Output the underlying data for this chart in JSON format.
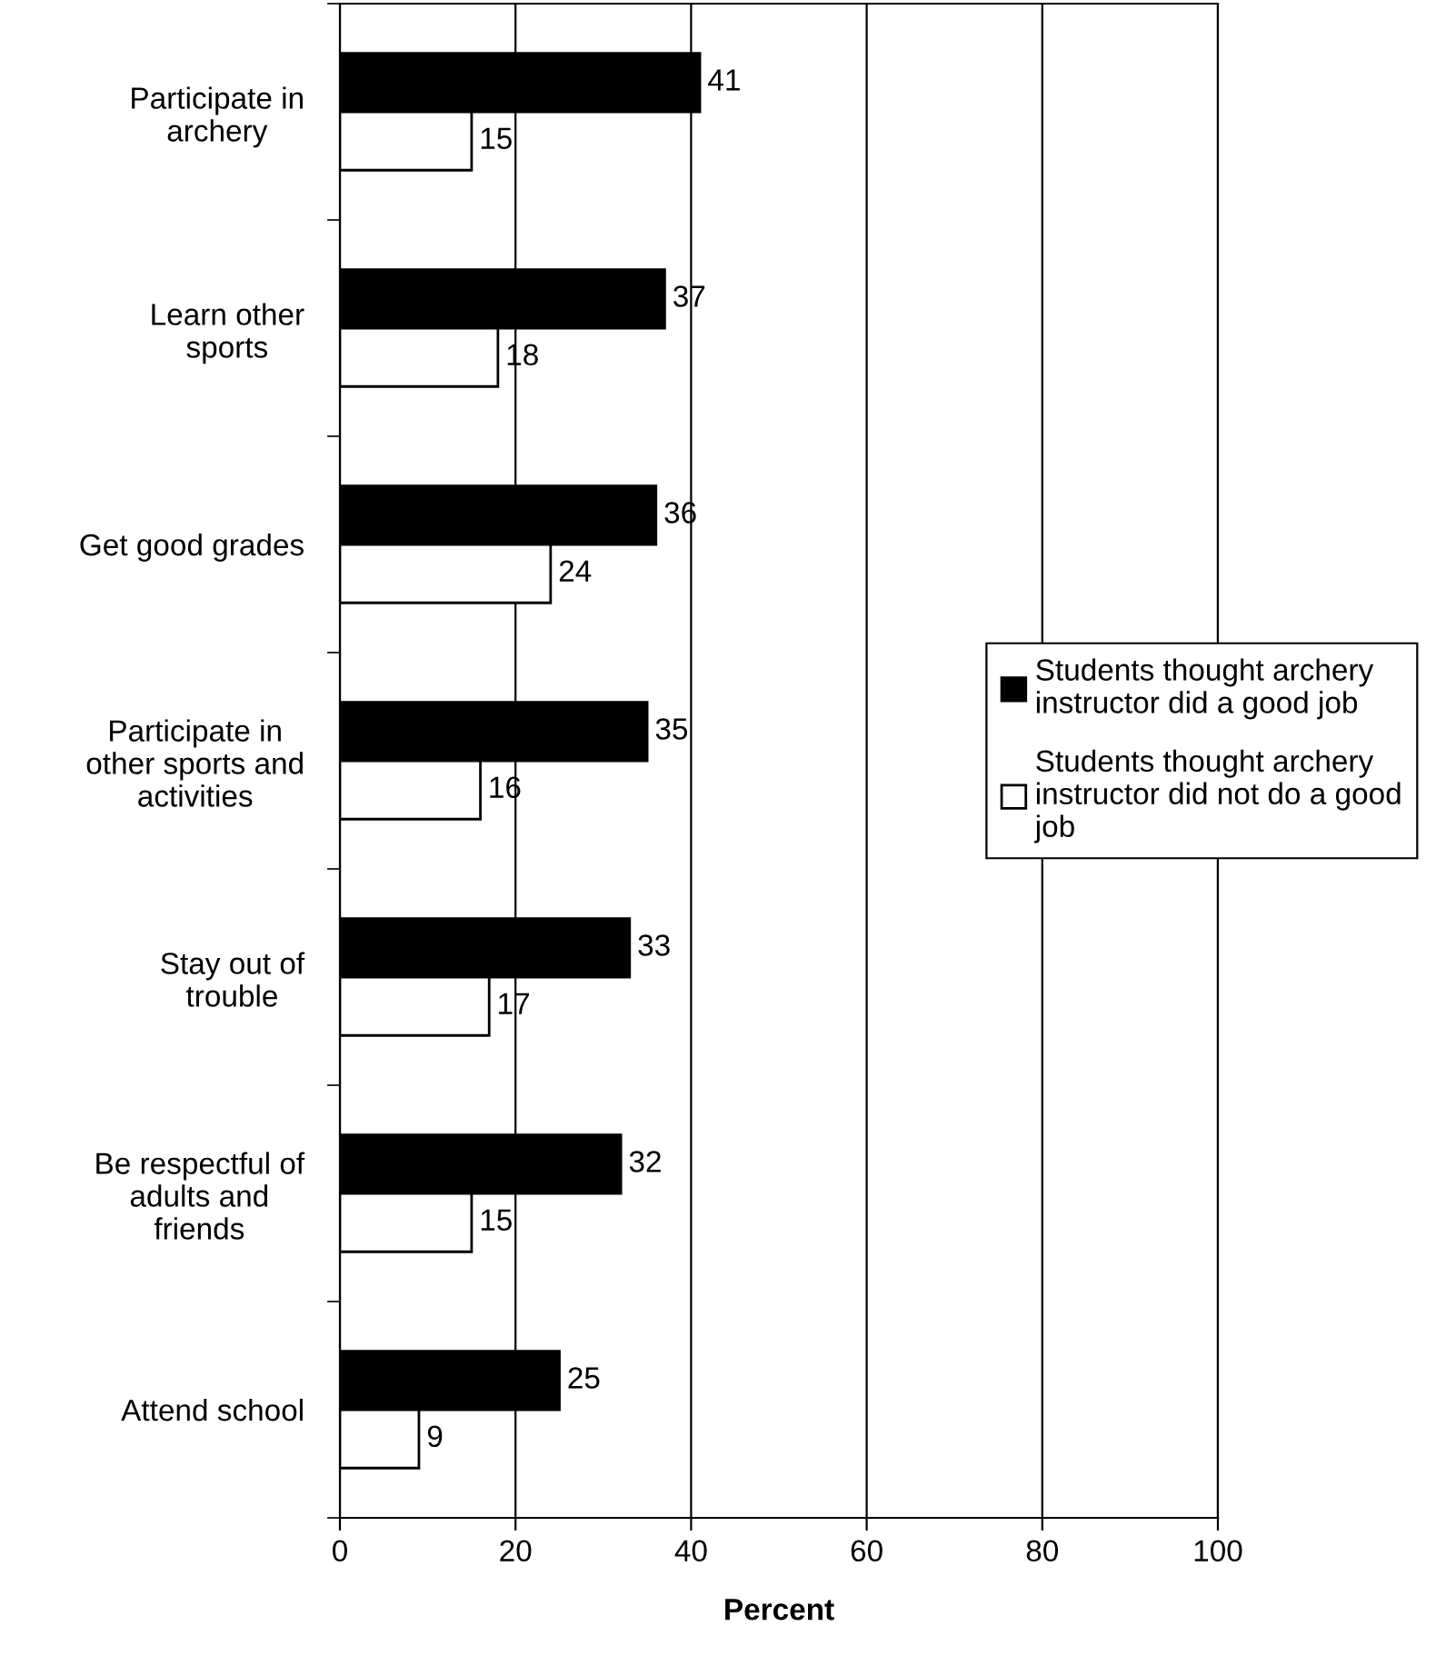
{
  "chart_data": {
    "type": "bar",
    "orientation": "horizontal",
    "xlabel": "Percent",
    "categories": [
      "Participate in\narchery",
      "Learn other\nsports",
      "Get good grades",
      "Participate in\nother sports and\nactivities",
      "Stay out of\ntrouble",
      "Be respectful of\nadults and\nfriends",
      "Attend school"
    ],
    "series": [
      {
        "name": "Students thought archery\ninstructor did a good job",
        "color": "#000000",
        "values": [
          41,
          37,
          36,
          35,
          33,
          32,
          25
        ]
      },
      {
        "name": "Students thought archery\ninstructor did not do a good\njob",
        "color": "#ffffff",
        "values": [
          15,
          18,
          24,
          16,
          17,
          15,
          9
        ]
      }
    ],
    "xlim": [
      0,
      100
    ],
    "xticks": [
      0,
      20,
      40,
      60,
      80,
      100
    ],
    "grid": "x",
    "legend": "right",
    "data_labels": true
  }
}
